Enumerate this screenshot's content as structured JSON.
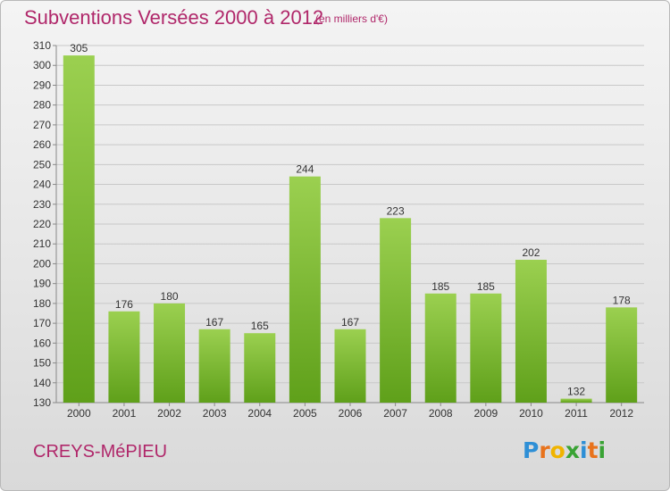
{
  "header": {
    "title": "Subventions Versées 2000 à 2012",
    "unit_note": "(en milliers d'€)"
  },
  "commune": "CREYS-MéPIEU",
  "logo": {
    "letters": [
      {
        "char": "P",
        "color": "#2e8fd6"
      },
      {
        "char": "r",
        "color": "#e8731c"
      },
      {
        "char": "o",
        "color": "#f0b400"
      },
      {
        "char": "x",
        "color": "#3aa335"
      },
      {
        "char": "i",
        "color": "#2e8fd6"
      },
      {
        "char": "t",
        "color": "#e8731c"
      },
      {
        "char": "i",
        "color": "#3aa335"
      }
    ]
  },
  "colors": {
    "title": "#b0276a",
    "bar_top": "#9bd050",
    "bar_bottom": "#5fa01a",
    "grid": "#c8c8c8"
  },
  "chart_data": {
    "type": "bar",
    "categories": [
      "2000",
      "2001",
      "2002",
      "2003",
      "2004",
      "2005",
      "2006",
      "2007",
      "2008",
      "2009",
      "2010",
      "2011",
      "2012"
    ],
    "values": [
      305,
      176,
      180,
      167,
      165,
      244,
      167,
      223,
      185,
      185,
      202,
      132,
      178
    ],
    "ylim": [
      130,
      310
    ],
    "yticks": [
      130,
      140,
      150,
      160,
      170,
      180,
      190,
      200,
      210,
      220,
      230,
      240,
      250,
      260,
      270,
      280,
      290,
      300,
      310
    ],
    "grid": true,
    "data_labels": true
  }
}
